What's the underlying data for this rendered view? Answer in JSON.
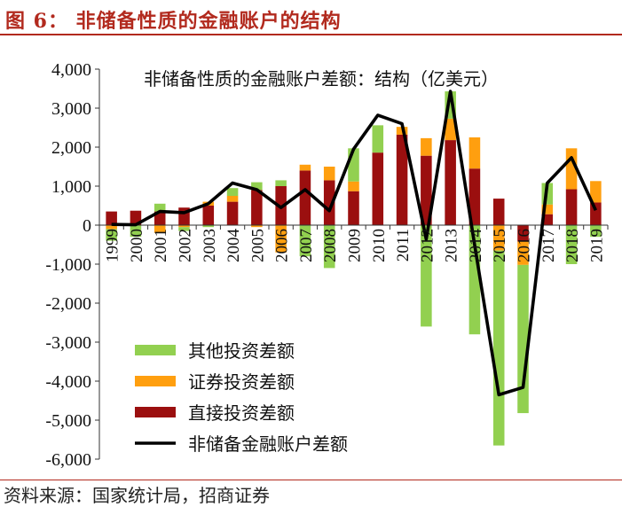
{
  "figure": {
    "title": "图 6：   非储备性质的金融账户的结构",
    "source": "资料来源：国家统计局，招商证券"
  },
  "chart_data": {
    "type": "bar",
    "subtype": "stacked bar with line overlay",
    "title": "非储备性质的金融账户差额：结构（亿美元）",
    "xlabel": "",
    "ylabel": "",
    "ylim": [
      -6000,
      4000
    ],
    "yticks": [
      4000,
      3000,
      2000,
      1000,
      0,
      -1000,
      -2000,
      -3000,
      -4000,
      -5000,
      -6000
    ],
    "ytick_labels": [
      "4,000",
      "3,000",
      "2,000",
      "1,000",
      "0",
      "-1,000",
      "-2,000",
      "-3,000",
      "-4,000",
      "-5,000",
      "-6,000"
    ],
    "grid": false,
    "legend_position": "bottom-left",
    "categories": [
      "1999",
      "2000",
      "2001",
      "2002",
      "2003",
      "2004",
      "2005",
      "2006",
      "2007",
      "2008",
      "2009",
      "2010",
      "2011",
      "2012",
      "2013",
      "2014",
      "2015",
      "2016",
      "2017",
      "2018",
      "2019"
    ],
    "series": [
      {
        "name": "其他投资差额",
        "kind": "bar",
        "color": "#92d050",
        "values": [
          -300,
          -300,
          200,
          -100,
          -50,
          200,
          200,
          150,
          -800,
          -1100,
          850,
          700,
          0,
          -2600,
          700,
          -2800,
          -5000,
          -3800,
          550,
          -1000,
          -300
        ]
      },
      {
        "name": "证券投资差额",
        "kind": "bar",
        "color": "#ff9f0f",
        "values": [
          -100,
          0,
          -200,
          -50,
          100,
          150,
          -50,
          -700,
          150,
          350,
          250,
          0,
          200,
          450,
          550,
          800,
          -650,
          -600,
          250,
          1050,
          550
        ]
      },
      {
        "name": "直接投资差额",
        "kind": "bar",
        "color": "#9b0f0f",
        "values": [
          350,
          370,
          350,
          450,
          500,
          600,
          900,
          1000,
          1400,
          1150,
          870,
          1860,
          2320,
          1780,
          2180,
          1450,
          680,
          -420,
          280,
          920,
          580
        ]
      },
      {
        "name": "非储备金融账户差额",
        "kind": "line",
        "color": "#000000",
        "values": [
          20,
          10,
          350,
          320,
          550,
          1080,
          910,
          450,
          910,
          370,
          1950,
          2820,
          2600,
          -360,
          3430,
          -510,
          -4350,
          -4160,
          1080,
          1730,
          380
        ]
      }
    ]
  }
}
